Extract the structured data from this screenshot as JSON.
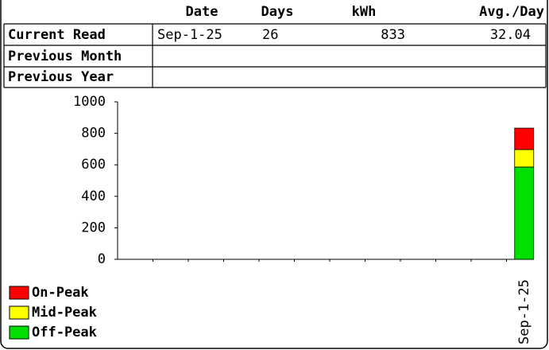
{
  "table": {
    "headers": [
      "Date",
      "Days",
      "kWh",
      "Avg./Day"
    ],
    "rows": [
      {
        "label": "Current Read",
        "cells": [
          "Sep-1-25",
          "26",
          "833",
          "32.04"
        ]
      },
      {
        "label": "Previous Month"
      },
      {
        "label": "Previous Year"
      }
    ]
  },
  "chart_data": {
    "type": "stacked_bar",
    "categories": [
      null,
      null,
      null,
      null,
      null,
      null,
      null,
      null,
      null,
      null,
      null,
      "Sep-1-25"
    ],
    "series": [
      {
        "name": "On-Peak",
        "color": "#ff0000",
        "values": [
          null,
          null,
          null,
          null,
          null,
          null,
          null,
          null,
          null,
          null,
          null,
          136
        ]
      },
      {
        "name": "Mid-Peak",
        "color": "#ffff00",
        "values": [
          null,
          null,
          null,
          null,
          null,
          null,
          null,
          null,
          null,
          null,
          null,
          111
        ]
      },
      {
        "name": "Off-Peak",
        "color": "#00e000",
        "values": [
          null,
          null,
          null,
          null,
          null,
          null,
          null,
          null,
          null,
          null,
          null,
          586
        ]
      }
    ],
    "ylim": [
      0,
      1000
    ],
    "yticks": [
      0,
      200,
      400,
      600,
      800,
      1000
    ],
    "legend": "bottom-left"
  }
}
